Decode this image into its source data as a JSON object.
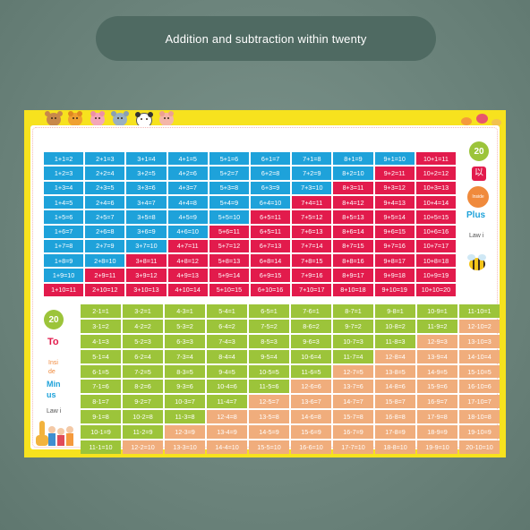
{
  "banner": {
    "title": "Addition and subtraction within twenty"
  },
  "side_labels": {
    "top_badge": "20",
    "top_char": "以",
    "inside_tag": "Inside",
    "plus": "Plus",
    "law_top": "Law i",
    "bottom_badge": "20",
    "to": "To",
    "insi": "Insi",
    "de": "de",
    "minus": "Min",
    "us": "us",
    "law_bottom": "Law i"
  },
  "colors": {
    "poster_yellow": "#f7e21e",
    "blue": "#1ea2da",
    "red": "#e21b4c",
    "green": "#9cc43a",
    "orange": "#f0ad7c",
    "banner": "#4f6a62"
  },
  "decorations": [
    "monkey-icon",
    "fox-icon",
    "pig-icon",
    "koala-icon",
    "panda-icon",
    "pig-icon",
    "candy-icon",
    "lollipop-icon",
    "bee-icon",
    "giraffe-icon",
    "kids-group-icon"
  ],
  "addition_rows": [
    [
      [
        "1+1=2",
        "blue"
      ],
      [
        "2+1=3",
        "blue"
      ],
      [
        "3+1=4",
        "blue"
      ],
      [
        "4+1=5",
        "blue"
      ],
      [
        "5+1=6",
        "blue"
      ],
      [
        "6+1=7",
        "blue"
      ],
      [
        "7+1=8",
        "blue"
      ],
      [
        "8+1=9",
        "blue"
      ],
      [
        "9+1=10",
        "blue"
      ],
      [
        "10+1=11",
        "red"
      ]
    ],
    [
      [
        "1+2=3",
        "blue"
      ],
      [
        "2+2=4",
        "blue"
      ],
      [
        "3+2=5",
        "blue"
      ],
      [
        "4+2=6",
        "blue"
      ],
      [
        "5+2=7",
        "blue"
      ],
      [
        "6+2=8",
        "blue"
      ],
      [
        "7+2=9",
        "blue"
      ],
      [
        "8+2=10",
        "blue"
      ],
      [
        "9+2=11",
        "red"
      ],
      [
        "10+2=12",
        "red"
      ]
    ],
    [
      [
        "1+3=4",
        "blue"
      ],
      [
        "2+3=5",
        "blue"
      ],
      [
        "3+3=6",
        "blue"
      ],
      [
        "4+3=7",
        "blue"
      ],
      [
        "5+3=8",
        "blue"
      ],
      [
        "6+3=9",
        "blue"
      ],
      [
        "7+3=10",
        "blue"
      ],
      [
        "8+3=11",
        "red"
      ],
      [
        "9+3=12",
        "red"
      ],
      [
        "10+3=13",
        "red"
      ]
    ],
    [
      [
        "1+4=5",
        "blue"
      ],
      [
        "2+4=6",
        "blue"
      ],
      [
        "3+4=7",
        "blue"
      ],
      [
        "4+4=8",
        "blue"
      ],
      [
        "5+4=9",
        "blue"
      ],
      [
        "6+4=10",
        "blue"
      ],
      [
        "7+4=11",
        "red"
      ],
      [
        "8+4=12",
        "red"
      ],
      [
        "9+4=13",
        "red"
      ],
      [
        "10+4=14",
        "red"
      ]
    ],
    [
      [
        "1+5=6",
        "blue"
      ],
      [
        "2+5=7",
        "blue"
      ],
      [
        "3+5=8",
        "blue"
      ],
      [
        "4+5=9",
        "blue"
      ],
      [
        "5+5=10",
        "blue"
      ],
      [
        "6+5=11",
        "red"
      ],
      [
        "7+5=12",
        "red"
      ],
      [
        "8+5=13",
        "red"
      ],
      [
        "9+5=14",
        "red"
      ],
      [
        "10+5=15",
        "red"
      ]
    ],
    [
      [
        "1+6=7",
        "blue"
      ],
      [
        "2+6=8",
        "blue"
      ],
      [
        "3+6=9",
        "blue"
      ],
      [
        "4+6=10",
        "blue"
      ],
      [
        "5+6=11",
        "red"
      ],
      [
        "6+5=11",
        "red"
      ],
      [
        "7+6=13",
        "red"
      ],
      [
        "8+6=14",
        "red"
      ],
      [
        "9+6=15",
        "red"
      ],
      [
        "10+6=16",
        "red"
      ]
    ],
    [
      [
        "1+7=8",
        "blue"
      ],
      [
        "2+7=9",
        "blue"
      ],
      [
        "3+7=10",
        "blue"
      ],
      [
        "4+7=11",
        "red"
      ],
      [
        "5+7=12",
        "red"
      ],
      [
        "6+7=13",
        "red"
      ],
      [
        "7+7=14",
        "red"
      ],
      [
        "8+7=15",
        "red"
      ],
      [
        "9+7=16",
        "red"
      ],
      [
        "10+7=17",
        "red"
      ]
    ],
    [
      [
        "1+8=9",
        "blue"
      ],
      [
        "2+8=10",
        "blue"
      ],
      [
        "3+8=11",
        "red"
      ],
      [
        "4+8=12",
        "red"
      ],
      [
        "5+8=13",
        "red"
      ],
      [
        "6+8=14",
        "red"
      ],
      [
        "7+8=15",
        "red"
      ],
      [
        "8+8=16",
        "red"
      ],
      [
        "9+8=17",
        "red"
      ],
      [
        "10+8=18",
        "red"
      ]
    ],
    [
      [
        "1+9=10",
        "blue"
      ],
      [
        "2+9=11",
        "red"
      ],
      [
        "3+9=12",
        "red"
      ],
      [
        "4+9=13",
        "red"
      ],
      [
        "5+9=14",
        "red"
      ],
      [
        "6+9=15",
        "red"
      ],
      [
        "7+9=16",
        "red"
      ],
      [
        "8+9=17",
        "red"
      ],
      [
        "9+9=18",
        "red"
      ],
      [
        "10+9=19",
        "red"
      ]
    ],
    [
      [
        "1+10=11",
        "red"
      ],
      [
        "2+10=12",
        "red"
      ],
      [
        "3+10=13",
        "red"
      ],
      [
        "4+10=14",
        "red"
      ],
      [
        "5+10=15",
        "red"
      ],
      [
        "6+10=16",
        "red"
      ],
      [
        "7+10=17",
        "red"
      ],
      [
        "8+10=18",
        "red"
      ],
      [
        "9+10=19",
        "red"
      ],
      [
        "10+10=20",
        "red"
      ]
    ]
  ],
  "subtraction_rows": [
    [
      [
        "2-1=1",
        "green"
      ],
      [
        "3-2=1",
        "green"
      ],
      [
        "4-3=1",
        "green"
      ],
      [
        "5-4=1",
        "green"
      ],
      [
        "6-5=1",
        "green"
      ],
      [
        "7-6=1",
        "green"
      ],
      [
        "8-7=1",
        "green"
      ],
      [
        "9-8=1",
        "green"
      ],
      [
        "10-9=1",
        "green"
      ],
      [
        "11-10=1",
        "green"
      ]
    ],
    [
      [
        "3-1=2",
        "green"
      ],
      [
        "4-2=2",
        "green"
      ],
      [
        "5-3=2",
        "green"
      ],
      [
        "6-4=2",
        "green"
      ],
      [
        "7-5=2",
        "green"
      ],
      [
        "8-6=2",
        "green"
      ],
      [
        "9-7=2",
        "green"
      ],
      [
        "10-8=2",
        "green"
      ],
      [
        "11-9=2",
        "green"
      ],
      [
        "12-10=2",
        "orange"
      ]
    ],
    [
      [
        "4-1=3",
        "green"
      ],
      [
        "5-2=3",
        "green"
      ],
      [
        "6-3=3",
        "green"
      ],
      [
        "7-4=3",
        "green"
      ],
      [
        "8-5=3",
        "green"
      ],
      [
        "9-6=3",
        "green"
      ],
      [
        "10-7=3",
        "green"
      ],
      [
        "11-8=3",
        "green"
      ],
      [
        "12-9=3",
        "orange"
      ],
      [
        "13-10=3",
        "orange"
      ]
    ],
    [
      [
        "5-1=4",
        "green"
      ],
      [
        "6-2=4",
        "green"
      ],
      [
        "7-3=4",
        "green"
      ],
      [
        "8-4=4",
        "green"
      ],
      [
        "9-5=4",
        "green"
      ],
      [
        "10-6=4",
        "green"
      ],
      [
        "11-7=4",
        "green"
      ],
      [
        "12-8=4",
        "orange"
      ],
      [
        "13-9=4",
        "orange"
      ],
      [
        "14-10=4",
        "orange"
      ]
    ],
    [
      [
        "6-1=5",
        "green"
      ],
      [
        "7-2=5",
        "green"
      ],
      [
        "8-3=5",
        "green"
      ],
      [
        "9-4=5",
        "green"
      ],
      [
        "10-5=5",
        "green"
      ],
      [
        "11-6=5",
        "green"
      ],
      [
        "12-7=5",
        "orange"
      ],
      [
        "13-8=5",
        "orange"
      ],
      [
        "14-9=5",
        "orange"
      ],
      [
        "15-10=5",
        "orange"
      ]
    ],
    [
      [
        "7-1=6",
        "green"
      ],
      [
        "8-2=6",
        "green"
      ],
      [
        "9-3=6",
        "green"
      ],
      [
        "10-4=6",
        "green"
      ],
      [
        "11-5=6",
        "green"
      ],
      [
        "12-6=6",
        "orange"
      ],
      [
        "13-7=6",
        "orange"
      ],
      [
        "14-8=6",
        "orange"
      ],
      [
        "15-9=6",
        "orange"
      ],
      [
        "16-10=6",
        "orange"
      ]
    ],
    [
      [
        "8-1=7",
        "green"
      ],
      [
        "9-2=7",
        "green"
      ],
      [
        "10-3=7",
        "green"
      ],
      [
        "11-4=7",
        "green"
      ],
      [
        "12-5=7",
        "orange"
      ],
      [
        "13-6=7",
        "orange"
      ],
      [
        "14-7=7",
        "orange"
      ],
      [
        "15-8=7",
        "orange"
      ],
      [
        "16-9=7",
        "orange"
      ],
      [
        "17-10=7",
        "orange"
      ]
    ],
    [
      [
        "9-1=8",
        "green"
      ],
      [
        "10-2=8",
        "green"
      ],
      [
        "11-3=8",
        "green"
      ],
      [
        "12-4=8",
        "orange"
      ],
      [
        "13-5=8",
        "orange"
      ],
      [
        "14-6=8",
        "orange"
      ],
      [
        "15-7=8",
        "orange"
      ],
      [
        "16-8=8",
        "orange"
      ],
      [
        "17-9=8",
        "orange"
      ],
      [
        "18-10=8",
        "orange"
      ]
    ],
    [
      [
        "10-1=9",
        "green"
      ],
      [
        "11-2=9",
        "green"
      ],
      [
        "12-3=9",
        "orange"
      ],
      [
        "13-4=9",
        "orange"
      ],
      [
        "14-5=9",
        "orange"
      ],
      [
        "15-6=9",
        "orange"
      ],
      [
        "16-7=9",
        "orange"
      ],
      [
        "17-8=9",
        "orange"
      ],
      [
        "18-9=9",
        "orange"
      ],
      [
        "19-10=9",
        "orange"
      ]
    ],
    [
      [
        "11-1=10",
        "green"
      ],
      [
        "12-2=10",
        "orange"
      ],
      [
        "13-3=10",
        "orange"
      ],
      [
        "14-4=10",
        "orange"
      ],
      [
        "15-5=10",
        "orange"
      ],
      [
        "16-6=10",
        "orange"
      ],
      [
        "17-7=10",
        "orange"
      ],
      [
        "18-8=10",
        "orange"
      ],
      [
        "19-9=10",
        "orange"
      ],
      [
        "20-10=10",
        "orange"
      ]
    ]
  ]
}
